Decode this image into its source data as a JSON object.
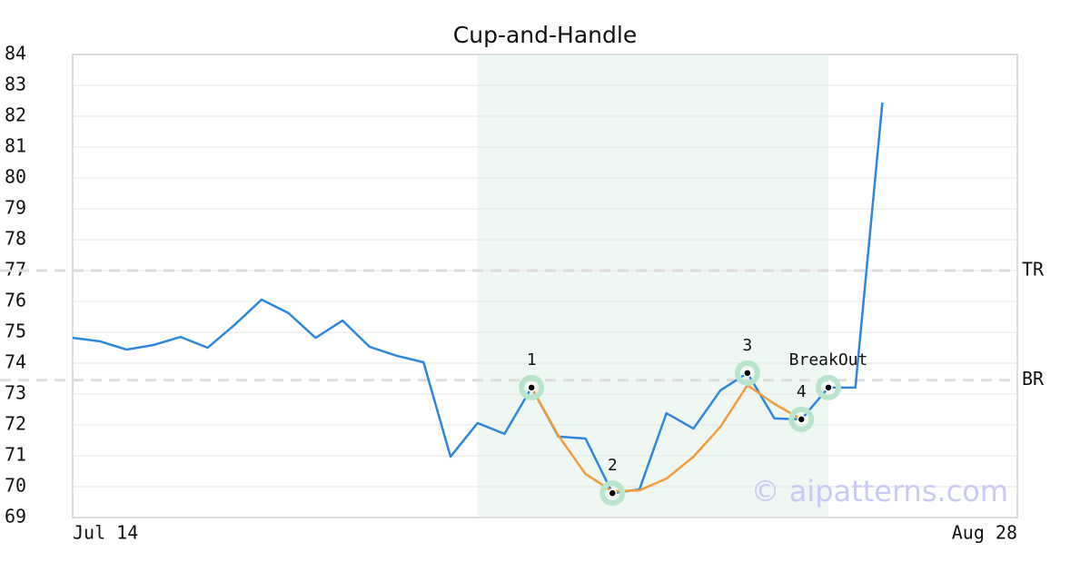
{
  "chart_data": {
    "type": "line",
    "title": "Cup-and-Handle",
    "categories": [
      "Jul 14",
      null,
      null,
      null,
      null,
      null,
      null,
      null,
      null,
      null,
      null,
      null,
      null,
      null,
      null,
      null,
      null,
      null,
      null,
      null,
      null,
      null,
      null,
      null,
      null,
      null,
      null,
      null,
      null,
      null,
      null,
      null,
      null,
      null,
      null,
      "Aug 28"
    ],
    "series": [
      {
        "color": "#2e86de",
        "values": [
          74.82,
          74.71,
          74.44,
          74.59,
          74.85,
          74.5,
          75.24,
          76.06,
          75.62,
          74.82,
          75.38,
          74.53,
          74.24,
          74.03,
          70.97,
          72.06,
          71.71,
          73.21,
          71.62,
          71.56,
          69.79,
          69.91,
          72.38,
          71.88,
          73.12,
          73.68,
          72.21,
          72.18,
          73.21,
          73.21,
          82.44,
          null,
          null,
          null,
          null,
          null
        ]
      },
      {
        "color": "#f39c3c",
        "values": [
          null,
          null,
          null,
          null,
          null,
          null,
          null,
          null,
          null,
          null,
          null,
          null,
          null,
          null,
          null,
          null,
          null,
          73.21,
          71.65,
          70.41,
          69.85,
          69.88,
          70.26,
          70.97,
          71.94,
          73.29,
          72.68,
          72.18,
          null,
          null,
          null,
          null,
          null,
          null,
          null,
          null
        ]
      },
      {
        "type": "marker",
        "color": "#b8e6cc",
        "values": [
          null,
          null,
          null,
          null,
          null,
          null,
          null,
          null,
          null,
          null,
          null,
          null,
          null,
          null,
          null,
          null,
          null,
          73.21,
          null,
          null,
          69.79,
          null,
          null,
          null,
          null,
          73.68,
          null,
          72.18,
          73.21,
          null,
          null,
          null,
          null,
          null,
          null,
          null
        ],
        "labels": [
          null,
          null,
          null,
          null,
          null,
          null,
          null,
          null,
          null,
          null,
          null,
          null,
          null,
          null,
          null,
          null,
          null,
          "1",
          null,
          null,
          "2",
          null,
          null,
          null,
          null,
          "3",
          null,
          "4",
          "BreakOut",
          null,
          null,
          null,
          null,
          null,
          null,
          null
        ]
      }
    ],
    "hlines": [
      {
        "value": 77,
        "label": "TR"
      },
      {
        "value": 73.45,
        "label": "BR"
      }
    ],
    "highlight": {
      "from": 15,
      "to": 28,
      "color": "#eef7f2"
    },
    "watermark": "© aipatterns.com",
    "ylim": [
      69,
      84
    ],
    "yticks": [
      69,
      70,
      71,
      72,
      73,
      74,
      75,
      76,
      77,
      78,
      79,
      80,
      81,
      82,
      83,
      84
    ],
    "grid": true
  }
}
